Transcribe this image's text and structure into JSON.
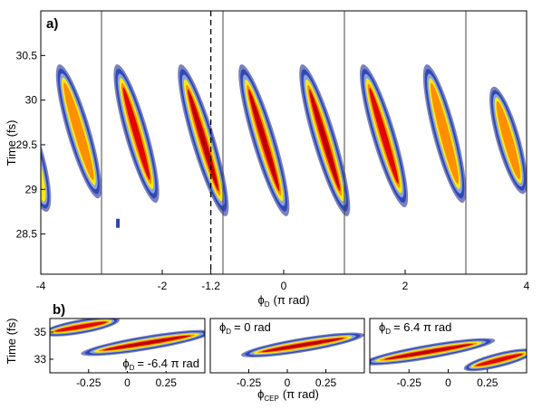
{
  "palette": {
    "outer": "#0b1a8c",
    "blue": "#2a44b5",
    "light": "#8fa8df",
    "yellow": "#ffee00",
    "orange": "#ff8a00",
    "red": "#e00000",
    "darkred": "#b40000"
  },
  "chart_data": [
    {
      "panel": "a)",
      "type": "heatmap",
      "xlabel_symbol": "ϕ",
      "xlabel_sub": "D",
      "xlabel_unit": "(π rad)",
      "ylabel": "Time (fs)",
      "xlim": [
        -4,
        4
      ],
      "ylim": [
        28.05,
        31.0
      ],
      "x_ticks": [
        -4,
        -2,
        -1.2,
        0,
        2,
        4
      ],
      "x_tick_labels": [
        "-4",
        "-2",
        "-1.2",
        "0",
        "2",
        "4"
      ],
      "y_ticks": [
        28.5,
        29,
        29.5,
        30,
        30.5
      ],
      "y_tick_labels": [
        "28.5",
        "29",
        "29.5",
        "30",
        "30.5"
      ],
      "vertical_lines": [
        -3,
        -1,
        1,
        3
      ],
      "dashed_line": -1.2,
      "blobs": [
        {
          "x_top": -4.35,
          "x_bottom": -3.9,
          "t_top": 29.9,
          "t_bottom": 28.75,
          "intensity": 0.2
        },
        {
          "x_top": -3.7,
          "x_bottom": -3.05,
          "t_top": 30.4,
          "t_bottom": 28.9,
          "intensity": 0.6
        },
        {
          "x_top": -2.75,
          "x_bottom": -2.1,
          "t_top": 30.4,
          "t_bottom": 28.85,
          "intensity": 0.8
        },
        {
          "x_top": -1.7,
          "x_bottom": -0.95,
          "t_top": 30.4,
          "t_bottom": 28.7,
          "intensity": 1.0
        },
        {
          "x_top": -0.7,
          "x_bottom": 0.05,
          "t_top": 30.4,
          "t_bottom": 28.7,
          "intensity": 1.0
        },
        {
          "x_top": 0.3,
          "x_bottom": 1.05,
          "t_top": 30.4,
          "t_bottom": 28.7,
          "intensity": 0.9
        },
        {
          "x_top": 1.3,
          "x_bottom": 2.0,
          "t_top": 30.4,
          "t_bottom": 28.8,
          "intensity": 0.8
        },
        {
          "x_top": 2.35,
          "x_bottom": 2.95,
          "t_top": 30.4,
          "t_bottom": 28.85,
          "intensity": 0.55
        },
        {
          "x_top": 3.45,
          "x_bottom": 3.95,
          "t_top": 30.15,
          "t_bottom": 28.95,
          "intensity": 0.45
        }
      ],
      "speck": {
        "x": -2.73,
        "t": 28.62
      }
    },
    {
      "panel": "b)",
      "type": "heatmap",
      "xlabel_symbol": "ϕ",
      "xlabel_sub": "CEP",
      "xlabel_unit": "(π rad)",
      "ylabel": "Time (fs)",
      "xlim": [
        -0.5,
        0.5
      ],
      "ylim": [
        32.0,
        36.0
      ],
      "x_ticks": [
        -0.25,
        0,
        0.25
      ],
      "x_tick_labels": [
        "-0.25",
        "0",
        "0.25"
      ],
      "y_ticks": [
        33,
        35
      ],
      "y_tick_labels": [
        "33",
        "35"
      ],
      "subplots": [
        {
          "annotation_symbol": "ϕ",
          "annotation_sub": "D",
          "annotation_value": "= -6.4 π rad",
          "annotation_pos": "bottom-right",
          "streaks": [
            {
              "x1": -0.55,
              "t1": 34.9,
              "x2": -0.05,
              "t2": 35.9,
              "intensity": 0.75
            },
            {
              "x1": -0.3,
              "t1": 33.4,
              "x2": 0.55,
              "t2": 35.0,
              "intensity": 1.0
            }
          ]
        },
        {
          "annotation_symbol": "ϕ",
          "annotation_sub": "D",
          "annotation_value": "= 0 rad",
          "annotation_pos": "top-left",
          "streaks": [
            {
              "x1": -0.3,
              "t1": 33.3,
              "x2": 0.5,
              "t2": 34.8,
              "intensity": 0.9
            }
          ]
        },
        {
          "annotation_symbol": "ϕ",
          "annotation_sub": "D",
          "annotation_value": "= 6.4 π rad",
          "annotation_pos": "top-left",
          "streaks": [
            {
              "x1": -0.55,
              "t1": 32.7,
              "x2": 0.3,
              "t2": 34.4,
              "intensity": 1.0
            },
            {
              "x1": 0.1,
              "t1": 32.3,
              "x2": 0.55,
              "t2": 33.6,
              "intensity": 0.7
            }
          ]
        }
      ]
    }
  ]
}
